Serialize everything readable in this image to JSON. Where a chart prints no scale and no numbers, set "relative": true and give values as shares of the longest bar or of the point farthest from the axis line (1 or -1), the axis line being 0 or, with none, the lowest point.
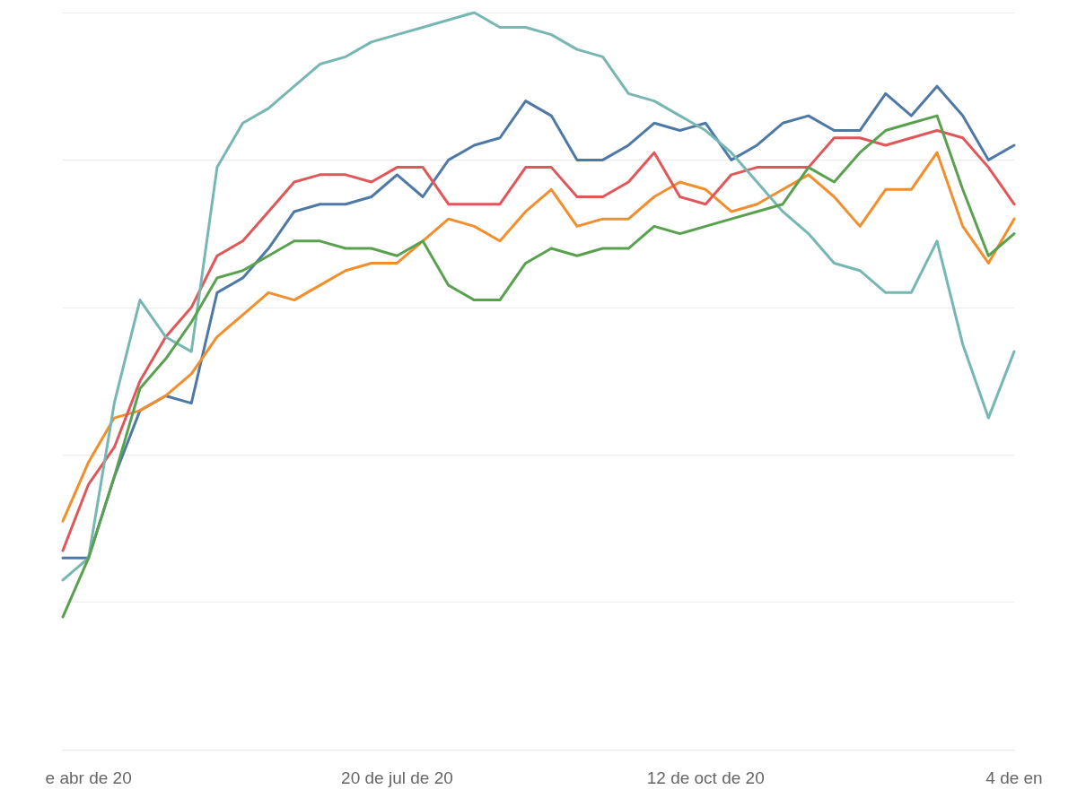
{
  "chart_data": {
    "type": "line",
    "relative": true,
    "x": [
      "2020-04-20",
      "2020-04-27",
      "2020-05-04",
      "2020-05-11",
      "2020-05-18",
      "2020-05-25",
      "2020-06-01",
      "2020-06-08",
      "2020-06-15",
      "2020-06-22",
      "2020-06-29",
      "2020-07-06",
      "2020-07-13",
      "2020-07-20",
      "2020-07-27",
      "2020-08-03",
      "2020-08-10",
      "2020-08-17",
      "2020-08-24",
      "2020-08-31",
      "2020-09-07",
      "2020-09-14",
      "2020-09-21",
      "2020-09-28",
      "2020-10-05",
      "2020-10-12",
      "2020-10-19",
      "2020-10-26",
      "2020-11-02",
      "2020-11-09",
      "2020-11-16",
      "2020-11-23",
      "2020-11-30",
      "2020-12-07",
      "2020-12-14",
      "2020-12-21",
      "2020-12-28",
      "2021-01-04"
    ],
    "xlim": [
      "2020-04-20",
      "2021-01-04"
    ],
    "xticks": [
      {
        "value": "2020-04-27",
        "label": "e abr de 20"
      },
      {
        "value": "2020-07-20",
        "label": "20 de jul de 20"
      },
      {
        "value": "2020-10-12",
        "label": "12 de oct de 20"
      },
      {
        "value": "2021-01-04",
        "label": "4 de en"
      }
    ],
    "series": [
      {
        "color": "#4e79a7",
        "values": [
          0.26,
          0.26,
          0.37,
          0.46,
          0.48,
          0.47,
          0.62,
          0.64,
          0.68,
          0.73,
          0.74,
          0.74,
          0.75,
          0.78,
          0.75,
          0.8,
          0.82,
          0.83,
          0.88,
          0.86,
          0.8,
          0.8,
          0.82,
          0.85,
          0.84,
          0.85,
          0.8,
          0.82,
          0.85,
          0.86,
          0.84,
          0.84,
          0.89,
          0.86,
          0.9,
          0.86,
          0.8,
          0.82
        ]
      },
      {
        "color": "#f28e2b",
        "values": [
          0.31,
          0.39,
          0.45,
          0.46,
          0.48,
          0.51,
          0.56,
          0.59,
          0.62,
          0.61,
          0.63,
          0.65,
          0.66,
          0.66,
          0.69,
          0.72,
          0.71,
          0.69,
          0.73,
          0.76,
          0.71,
          0.72,
          0.72,
          0.75,
          0.77,
          0.76,
          0.73,
          0.74,
          0.76,
          0.78,
          0.75,
          0.71,
          0.76,
          0.76,
          0.81,
          0.71,
          0.66,
          0.72
        ]
      },
      {
        "color": "#e15759",
        "values": [
          0.27,
          0.36,
          0.41,
          0.5,
          0.56,
          0.6,
          0.67,
          0.69,
          0.73,
          0.77,
          0.78,
          0.78,
          0.77,
          0.79,
          0.79,
          0.74,
          0.74,
          0.74,
          0.79,
          0.79,
          0.75,
          0.75,
          0.77,
          0.81,
          0.75,
          0.74,
          0.78,
          0.79,
          0.79,
          0.79,
          0.83,
          0.83,
          0.82,
          0.83,
          0.84,
          0.83,
          0.79,
          0.74
        ]
      },
      {
        "color": "#76b7b2",
        "values": [
          0.23,
          0.26,
          0.47,
          0.61,
          0.56,
          0.54,
          0.79,
          0.85,
          0.87,
          0.9,
          0.93,
          0.94,
          0.96,
          0.97,
          0.98,
          0.99,
          1,
          0.98,
          0.98,
          0.97,
          0.95,
          0.94,
          0.89,
          0.88,
          0.86,
          0.84,
          0.81,
          0.77,
          0.73,
          0.7,
          0.66,
          0.65,
          0.62,
          0.62,
          0.69,
          0.55,
          0.45,
          0.54
        ]
      },
      {
        "color": "#59a14f",
        "values": [
          0.18,
          0.26,
          0.37,
          0.49,
          0.53,
          0.58,
          0.64,
          0.65,
          0.67,
          0.69,
          0.69,
          0.68,
          0.68,
          0.67,
          0.69,
          0.63,
          0.61,
          0.61,
          0.66,
          0.68,
          0.67,
          0.68,
          0.68,
          0.71,
          0.7,
          0.71,
          0.72,
          0.73,
          0.74,
          0.79,
          0.77,
          0.81,
          0.84,
          0.85,
          0.86,
          0.76,
          0.67,
          0.7
        ]
      }
    ],
    "grid": "y",
    "marker": "none",
    "line_style": "solid"
  }
}
